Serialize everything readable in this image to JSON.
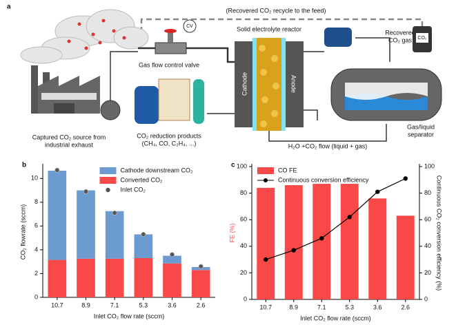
{
  "diagram": {
    "panel_label": "a",
    "recycle_label": "(Recovered CO₂ recycle to the feed)",
    "valve_tag": "CV",
    "reactor_label": "Solid electrolyte reactor",
    "recovered_gas_label": [
      "Recovered",
      "CO₂ gas"
    ],
    "cylinder_label": "CO₂",
    "valve_label": "Gas flow control valve",
    "cathode_label": "Cathode",
    "anode_label": "Anode",
    "source_label": [
      "Captured CO₂ source from",
      "industrial exhaust"
    ],
    "products_label": [
      "CO₂ reduction products",
      "(CH₄, CO, C₂H₄, ...)"
    ],
    "flow_label": "H₂O +CO₂ flow (liquid + gas)",
    "separator_label": [
      "Gas/liquid",
      "separator"
    ]
  },
  "chart_data": [
    {
      "type": "bar",
      "panel_label": "b",
      "stacked": true,
      "categories": [
        "10.7",
        "8.9",
        "7.1",
        "5.3",
        "3.6",
        "2.6"
      ],
      "series": [
        {
          "name": "Converted CO₂",
          "color": "#f94848",
          "values": [
            3.15,
            3.25,
            3.25,
            3.3,
            2.85,
            2.3
          ]
        },
        {
          "name": "Cathode downstream CO₂",
          "color": "#6b9bd1",
          "values": [
            7.5,
            5.75,
            4.0,
            2.0,
            0.65,
            0.25
          ]
        },
        {
          "name": "Inlet CO₂",
          "type": "scatter",
          "color": "#555555",
          "values": [
            10.7,
            8.9,
            7.1,
            5.3,
            3.6,
            2.6
          ]
        }
      ],
      "legend_order": [
        1,
        0,
        2
      ],
      "legend": "upper right",
      "ylim": [
        0,
        11
      ],
      "yticks": [
        0,
        2,
        4,
        6,
        8,
        10
      ],
      "xlabel": "Inlet CO₂ flow rate (sccm)",
      "ylabel": "CO₂ flowrate (sccm)"
    },
    {
      "type": "bar",
      "panel_label": "c",
      "categories": [
        "10.7",
        "8.9",
        "7.1",
        "5.3",
        "3.6",
        "2.6"
      ],
      "series": [
        {
          "name": "CO FE",
          "color": "#f94848",
          "values": [
            84,
            86,
            87,
            87,
            76,
            63
          ]
        },
        {
          "name": "Continuous conversion efficiency",
          "type": "line",
          "axis": "y2",
          "color": "#000000",
          "values": [
            30,
            37,
            46,
            62,
            81,
            91
          ]
        }
      ],
      "legend_order": [
        0,
        1
      ],
      "legend": "upper left",
      "ylim": [
        0,
        100
      ],
      "yticks": [
        0,
        20,
        40,
        60,
        80,
        100
      ],
      "y2lim": [
        0,
        100
      ],
      "y2ticks": [
        0,
        20,
        40,
        60,
        80,
        100
      ],
      "xlabel": "Inlet CO₂ flow rate (sccm)",
      "ylabel": "FE (%)",
      "ylabel_color": "#f94848",
      "y2label": "Continuous CO₂ conversion efficiency (%)"
    }
  ]
}
